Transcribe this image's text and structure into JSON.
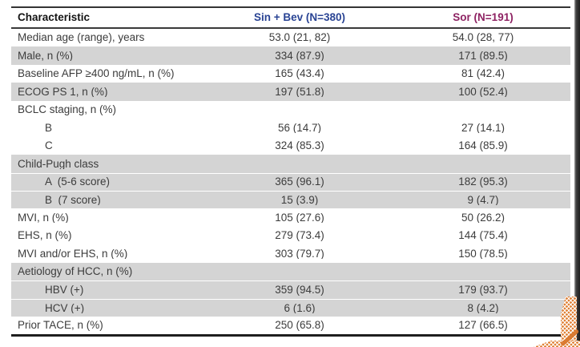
{
  "table": {
    "header": {
      "characteristic": "Characteristic",
      "arm1": "Sin + Bev (N=380)",
      "arm2": "Sor (N=191)"
    },
    "rows": [
      {
        "label": "Median age (range), years",
        "col1": "53.0 (21, 82)",
        "col2": "54.0 (28, 77)"
      },
      {
        "label": "Male, n (%)",
        "col1": "334 (87.9)",
        "col2": "171 (89.5)"
      },
      {
        "label": "Baseline AFP ≥400 ng/mL, n (%)",
        "col1": "165 (43.4)",
        "col2": "81 (42.4)"
      },
      {
        "label": "ECOG PS 1, n (%)",
        "col1": "197 (51.8)",
        "col2": "100 (52.4)"
      },
      {
        "label": "BCLC staging, n (%)",
        "col1": "",
        "col2": ""
      },
      {
        "label": "B",
        "col1": "56 (14.7)",
        "col2": "27 (14.1)"
      },
      {
        "label": "C",
        "col1": "324 (85.3)",
        "col2": "164 (85.9)"
      },
      {
        "label": "Child-Pugh class",
        "col1": "",
        "col2": ""
      },
      {
        "label": "A  (5-6 score)",
        "col1": "365 (96.1)",
        "col2": "182 (95.3)"
      },
      {
        "label": "B  (7 score)",
        "col1": "15 (3.9)",
        "col2": "9 (4.7)"
      },
      {
        "label": "MVI, n (%)",
        "col1": "105 (27.6)",
        "col2": "50 (26.2)"
      },
      {
        "label": "EHS, n (%)",
        "col1": "279 (73.4)",
        "col2": "144 (75.4)"
      },
      {
        "label": "MVI and/or EHS, n (%)",
        "col1": "303 (79.7)",
        "col2": "150 (78.5)"
      },
      {
        "label": "Aetiology of HCC, n (%)",
        "col1": "",
        "col2": ""
      },
      {
        "label": "HBV (+)",
        "col1": "359 (94.5)",
        "col2": "179 (93.7)"
      },
      {
        "label": "HCV (+)",
        "col1": "6 (1.6)",
        "col2": "8 (4.2)"
      },
      {
        "label": "Prior TACE, n (%)",
        "col1": "250 (65.8)",
        "col2": "127 (66.5)"
      }
    ]
  },
  "colors": {
    "arm1_header": "#2a4494",
    "arm2_header": "#8e2363",
    "row_band_gray": "#d4d4d4",
    "accent_orange": "#e08238",
    "edge_dark": "#1f1f1f"
  }
}
